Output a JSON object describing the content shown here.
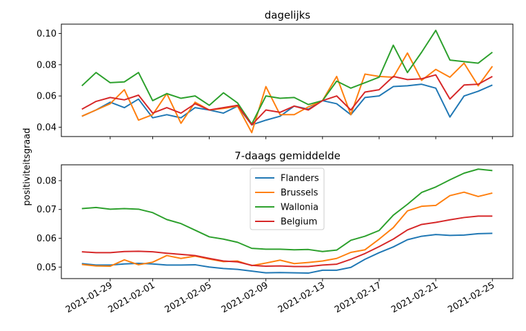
{
  "chart_data": [
    {
      "type": "line",
      "title": "dagelijks",
      "ylabel": "positiviteitsgraad",
      "x": [
        "2021-01-27",
        "2021-01-28",
        "2021-01-29",
        "2021-01-30",
        "2021-01-31",
        "2021-02-01",
        "2021-02-02",
        "2021-02-03",
        "2021-02-04",
        "2021-02-05",
        "2021-02-06",
        "2021-02-07",
        "2021-02-08",
        "2021-02-09",
        "2021-02-10",
        "2021-02-11",
        "2021-02-12",
        "2021-02-13",
        "2021-02-14",
        "2021-02-15",
        "2021-02-16",
        "2021-02-17",
        "2021-02-18",
        "2021-02-19",
        "2021-02-20",
        "2021-02-21",
        "2021-02-22",
        "2021-02-23",
        "2021-02-24",
        "2021-02-25"
      ],
      "xticks": [
        "2021-01-29",
        "2021-02-01",
        "2021-02-05",
        "2021-02-09",
        "2021-02-13",
        "2021-02-17",
        "2021-02-21",
        "2021-02-25"
      ],
      "ylim": [
        0.034,
        0.106
      ],
      "yticks": [
        "0.04",
        "0.06",
        "0.08",
        "0.10"
      ],
      "tick_labels_hidden": true,
      "series": [
        {
          "name": "Flanders",
          "color": "#1f77b4",
          "values": [
            0.047,
            0.051,
            0.056,
            0.0525,
            0.058,
            0.046,
            0.048,
            0.046,
            0.0525,
            0.051,
            0.049,
            0.0535,
            0.0415,
            0.0445,
            0.047,
            0.0535,
            0.0515,
            0.057,
            0.055,
            0.048,
            0.059,
            0.06,
            0.066,
            0.0665,
            0.0675,
            0.065,
            0.0465,
            0.06,
            0.063,
            0.067
          ]
        },
        {
          "name": "Brussels",
          "color": "#ff7f0e",
          "values": [
            0.047,
            0.051,
            0.055,
            0.064,
            0.0445,
            0.048,
            0.0615,
            0.0425,
            0.056,
            0.051,
            0.052,
            0.0535,
            0.0365,
            0.066,
            0.048,
            0.048,
            0.053,
            0.057,
            0.0725,
            0.048,
            0.074,
            0.0725,
            0.072,
            0.0875,
            0.07,
            0.077,
            0.072,
            0.081,
            0.0665,
            0.079
          ]
        },
        {
          "name": "Wallonia",
          "color": "#2ca02c",
          "values": [
            0.0665,
            0.075,
            0.0685,
            0.069,
            0.075,
            0.057,
            0.0615,
            0.0585,
            0.06,
            0.054,
            0.062,
            0.0555,
            0.042,
            0.06,
            0.0585,
            0.059,
            0.0545,
            0.057,
            0.0695,
            0.065,
            0.0685,
            0.072,
            0.0925,
            0.075,
            0.088,
            0.102,
            0.083,
            0.082,
            0.081,
            0.088
          ]
        },
        {
          "name": "Belgium",
          "color": "#d62728",
          "values": [
            0.0515,
            0.0565,
            0.059,
            0.0575,
            0.0605,
            0.049,
            0.0525,
            0.049,
            0.055,
            0.051,
            0.0525,
            0.054,
            0.0415,
            0.051,
            0.0495,
            0.0535,
            0.051,
            0.057,
            0.06,
            0.051,
            0.0625,
            0.064,
            0.0725,
            0.0705,
            0.071,
            0.0735,
            0.058,
            0.067,
            0.0675,
            0.0725
          ]
        }
      ]
    },
    {
      "type": "line",
      "title": "7-daags gemiddelde",
      "ylabel": "positiviteitsgraad",
      "x": [
        "2021-01-27",
        "2021-01-28",
        "2021-01-29",
        "2021-01-30",
        "2021-01-31",
        "2021-02-01",
        "2021-02-02",
        "2021-02-03",
        "2021-02-04",
        "2021-02-05",
        "2021-02-06",
        "2021-02-07",
        "2021-02-08",
        "2021-02-09",
        "2021-02-10",
        "2021-02-11",
        "2021-02-12",
        "2021-02-13",
        "2021-02-14",
        "2021-02-15",
        "2021-02-16",
        "2021-02-17",
        "2021-02-18",
        "2021-02-19",
        "2021-02-20",
        "2021-02-21",
        "2021-02-22",
        "2021-02-23",
        "2021-02-24",
        "2021-02-25"
      ],
      "xticks": [
        "2021-01-29",
        "2021-02-01",
        "2021-02-05",
        "2021-02-09",
        "2021-02-13",
        "2021-02-17",
        "2021-02-21",
        "2021-02-25"
      ],
      "ylim": [
        0.046,
        0.0855
      ],
      "yticks": [
        "0.05",
        "0.06",
        "0.07",
        "0.08"
      ],
      "legend": "upper-center",
      "series": [
        {
          "name": "Flanders",
          "color": "#1f77b4",
          "values": [
            0.0512,
            0.0507,
            0.0507,
            0.0511,
            0.0513,
            0.0511,
            0.0507,
            0.0507,
            0.0508,
            0.05,
            0.0495,
            0.0492,
            0.0486,
            0.048,
            0.0481,
            0.048,
            0.0479,
            0.0489,
            0.0489,
            0.0499,
            0.0527,
            0.055,
            0.057,
            0.0595,
            0.0607,
            0.0613,
            0.061,
            0.0611,
            0.0616,
            0.0617
          ]
        },
        {
          "name": "Brussels",
          "color": "#ff7f0e",
          "values": [
            0.0509,
            0.0504,
            0.0503,
            0.0525,
            0.0508,
            0.0517,
            0.054,
            0.053,
            0.0538,
            0.0528,
            0.0519,
            0.0521,
            0.0505,
            0.0514,
            0.0524,
            0.0512,
            0.0516,
            0.0521,
            0.053,
            0.0551,
            0.056,
            0.0597,
            0.0637,
            0.0695,
            0.0711,
            0.0714,
            0.0748,
            0.076,
            0.0745,
            0.0757
          ]
        },
        {
          "name": "Wallonia",
          "color": "#2ca02c",
          "values": [
            0.0703,
            0.0707,
            0.0701,
            0.0703,
            0.0701,
            0.0689,
            0.0665,
            0.0651,
            0.0628,
            0.0605,
            0.0597,
            0.0586,
            0.0565,
            0.0562,
            0.0562,
            0.056,
            0.0561,
            0.0554,
            0.0559,
            0.0593,
            0.0607,
            0.0627,
            0.068,
            0.0718,
            0.0759,
            0.0778,
            0.0803,
            0.0826,
            0.084,
            0.0835
          ]
        },
        {
          "name": "Belgium",
          "color": "#d62728",
          "values": [
            0.0553,
            0.055,
            0.055,
            0.0554,
            0.0555,
            0.0553,
            0.0548,
            0.0544,
            0.054,
            0.053,
            0.0521,
            0.0518,
            0.0506,
            0.0503,
            0.0504,
            0.0502,
            0.0502,
            0.0507,
            0.051,
            0.0527,
            0.0547,
            0.0571,
            0.0597,
            0.0629,
            0.0648,
            0.0655,
            0.0664,
            0.0672,
            0.0677,
            0.0677
          ]
        }
      ]
    }
  ]
}
